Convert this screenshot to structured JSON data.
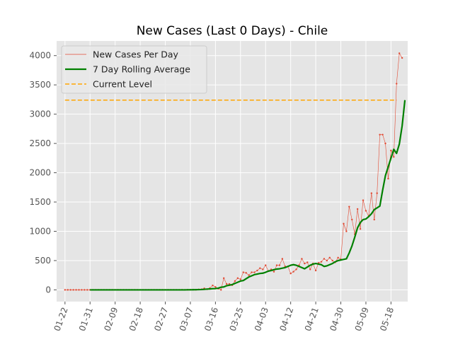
{
  "chart_data": {
    "type": "line",
    "title": "New Cases (Last 0 Days) - Chile",
    "xlabel": "",
    "ylabel": "",
    "x_start": "2020-01-22",
    "x_end": "2020-05-20",
    "xlim": [
      "2020-01-19",
      "2020-05-24"
    ],
    "ylim": [
      -200,
      4250
    ],
    "grid": true,
    "legend_position": "top-left",
    "x_ticks": [
      "01-22",
      "01-31",
      "02-09",
      "02-18",
      "02-27",
      "03-07",
      "03-16",
      "03-25",
      "04-03",
      "04-12",
      "04-21",
      "04-30",
      "05-09",
      "05-18"
    ],
    "y_ticks": [
      0,
      500,
      1000,
      1500,
      2000,
      2500,
      3000,
      3500,
      4000
    ],
    "colors": {
      "plot_background": "#e5e5e5",
      "grid": "#ffffff",
      "daily": "#e24a33",
      "rolling": "#008000",
      "current": "#ffa500"
    },
    "legend": [
      {
        "key": "daily",
        "label": "New Cases Per Day"
      },
      {
        "key": "rolling",
        "label": "7 Day Rolling Average"
      },
      {
        "key": "current",
        "label": "Current Level"
      }
    ],
    "series": [
      {
        "key": "daily",
        "name": "New Cases Per Day",
        "values": [
          0,
          0,
          0,
          0,
          0,
          0,
          0,
          0,
          0,
          0,
          0,
          0,
          0,
          0,
          0,
          0,
          0,
          0,
          0,
          0,
          0,
          0,
          0,
          0,
          0,
          0,
          0,
          0,
          0,
          0,
          0,
          0,
          0,
          0,
          0,
          0,
          0,
          0,
          0,
          0,
          0,
          0,
          1,
          0,
          1,
          2,
          4,
          2,
          7,
          10,
          25,
          10,
          30,
          75,
          50,
          20,
          0,
          200,
          100,
          100,
          80,
          150,
          200,
          180,
          300,
          290,
          250,
          300,
          300,
          330,
          370,
          350,
          420,
          320,
          350,
          310,
          420,
          420,
          530,
          400,
          400,
          280,
          310,
          350,
          420,
          530,
          450,
          470,
          350,
          450,
          330,
          460,
          480,
          530,
          500,
          550,
          500,
          470,
          550,
          520,
          1130,
          1000,
          1420,
          1200,
          950,
          1380,
          1040,
          1530,
          1350,
          1260,
          1650,
          1200,
          1650,
          2650,
          2650,
          2500,
          1900,
          2380,
          2270,
          3520,
          4040,
          3960
        ]
      },
      {
        "key": "rolling",
        "name": "7 Day Rolling Average",
        "x_start": "2020-01-31",
        "values": [
          0,
          0,
          0,
          0,
          0,
          0,
          0,
          0,
          0,
          0,
          0,
          0,
          0,
          0,
          0,
          0,
          0,
          0,
          0,
          0,
          0,
          0,
          0,
          0,
          0,
          0,
          0,
          0,
          0,
          0,
          0,
          0,
          0,
          0,
          0,
          1,
          1,
          2,
          3,
          4,
          6,
          9,
          13,
          16,
          20,
          22,
          28,
          45,
          50,
          70,
          80,
          90,
          110,
          130,
          150,
          160,
          190,
          220,
          240,
          260,
          270,
          280,
          285,
          300,
          320,
          330,
          345,
          355,
          360,
          370,
          380,
          400,
          420,
          430,
          420,
          400,
          380,
          360,
          390,
          420,
          440,
          450,
          440,
          430,
          400,
          410,
          430,
          450,
          480,
          500,
          510,
          520,
          530,
          630,
          750,
          900,
          1060,
          1150,
          1200,
          1210,
          1250,
          1300,
          1370,
          1400,
          1430,
          1700,
          1950,
          2100,
          2250,
          2400,
          2330,
          2490,
          2800,
          3240
        ]
      },
      {
        "key": "current",
        "name": "Current Level",
        "x": [
          "2020-01-22",
          "2020-05-20"
        ],
        "values": [
          3240,
          3240
        ]
      }
    ]
  }
}
